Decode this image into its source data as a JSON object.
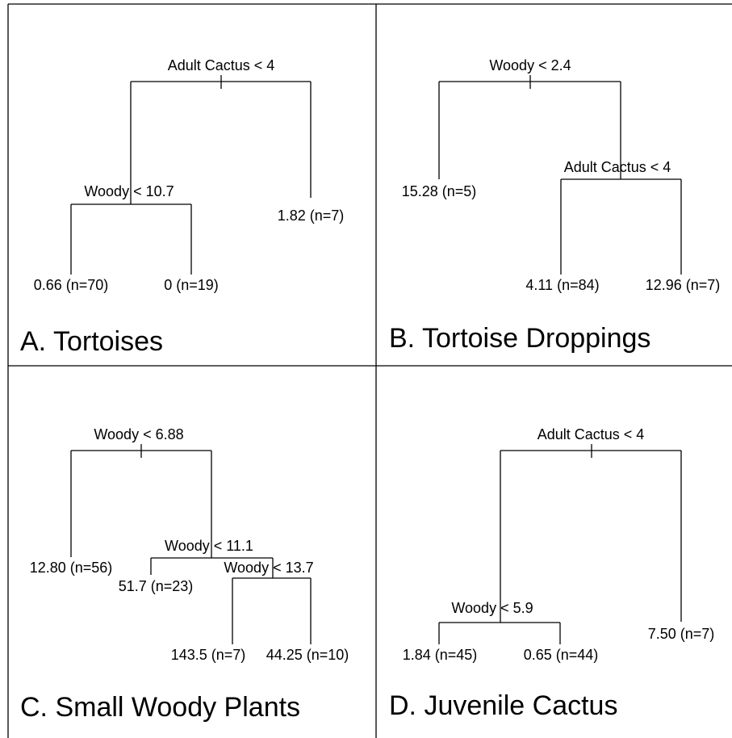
{
  "panels": [
    {
      "title": "A. Tortoises",
      "splits": [
        "Adult Cactus < 4",
        "Woody < 10.7"
      ],
      "leaves": [
        "1.82 (n=7)",
        "0.66 (n=70)",
        "0 (n=19)"
      ]
    },
    {
      "title": "B. Tortoise Droppings",
      "splits": [
        "Woody < 2.4",
        "Adult Cactus < 4"
      ],
      "leaves": [
        "15.28 (n=5)",
        "4.11 (n=84)",
        "12.96 (n=7)"
      ]
    },
    {
      "title": "C. Small Woody Plants",
      "splits": [
        "Woody < 6.88",
        "Woody < 11.1",
        "Woody < 13.7"
      ],
      "leaves": [
        "12.80 (n=56)",
        "51.7 (n=23)",
        "143.5 (n=7)",
        "44.25 (n=10)"
      ]
    },
    {
      "title": "D. Juvenile Cactus",
      "splits": [
        "Adult Cactus < 4",
        "Woody < 5.9"
      ],
      "leaves": [
        "7.50 (n=7)",
        "1.84 (n=45)",
        "0.65 (n=44)"
      ]
    }
  ]
}
